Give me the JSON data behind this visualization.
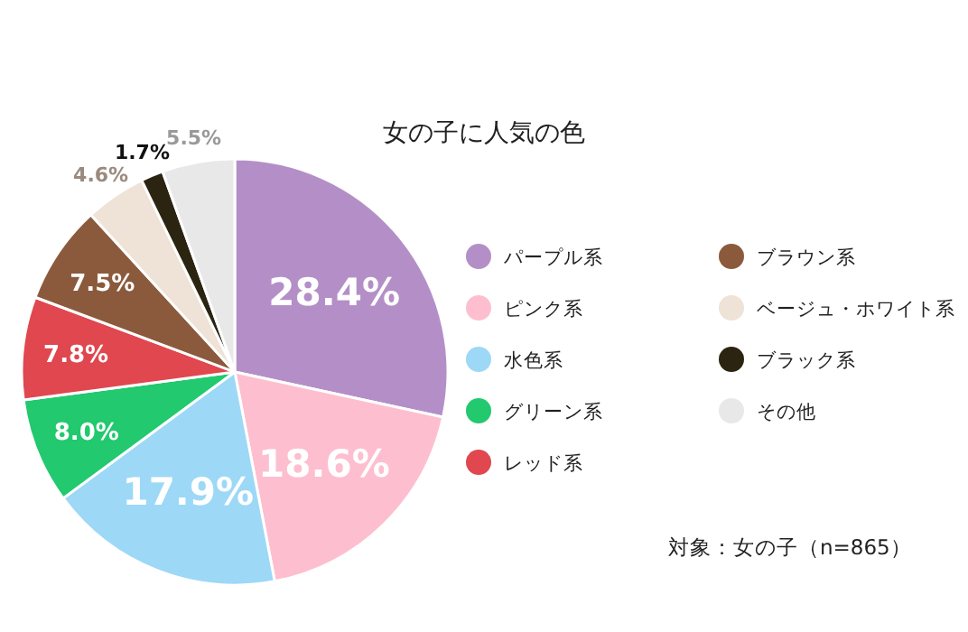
{
  "chart_data": {
    "type": "pie",
    "title": "女の子に人気の色",
    "categories": [
      "パープル系",
      "ピンク系",
      "水色系",
      "グリーン系",
      "レッド系",
      "ブラウン系",
      "ベージュ・ホワイト系",
      "ブラック系",
      "その他"
    ],
    "values": [
      28.4,
      18.6,
      17.9,
      8.0,
      7.8,
      7.5,
      4.6,
      1.7,
      5.5
    ],
    "colors": [
      "#b48fc7",
      "#fdbfcf",
      "#9dd8f7",
      "#22c96e",
      "#e0474f",
      "#8b5a3c",
      "#efe2d7",
      "#2b2411",
      "#e8e8e8"
    ],
    "value_labels": [
      "28.4%",
      "18.6%",
      "17.9%",
      "8.0%",
      "7.8%",
      "7.5%",
      "4.6%",
      "1.7%",
      "5.5%"
    ],
    "legend": "right",
    "annotations": [
      "対象：女の子（n=865）"
    ]
  }
}
